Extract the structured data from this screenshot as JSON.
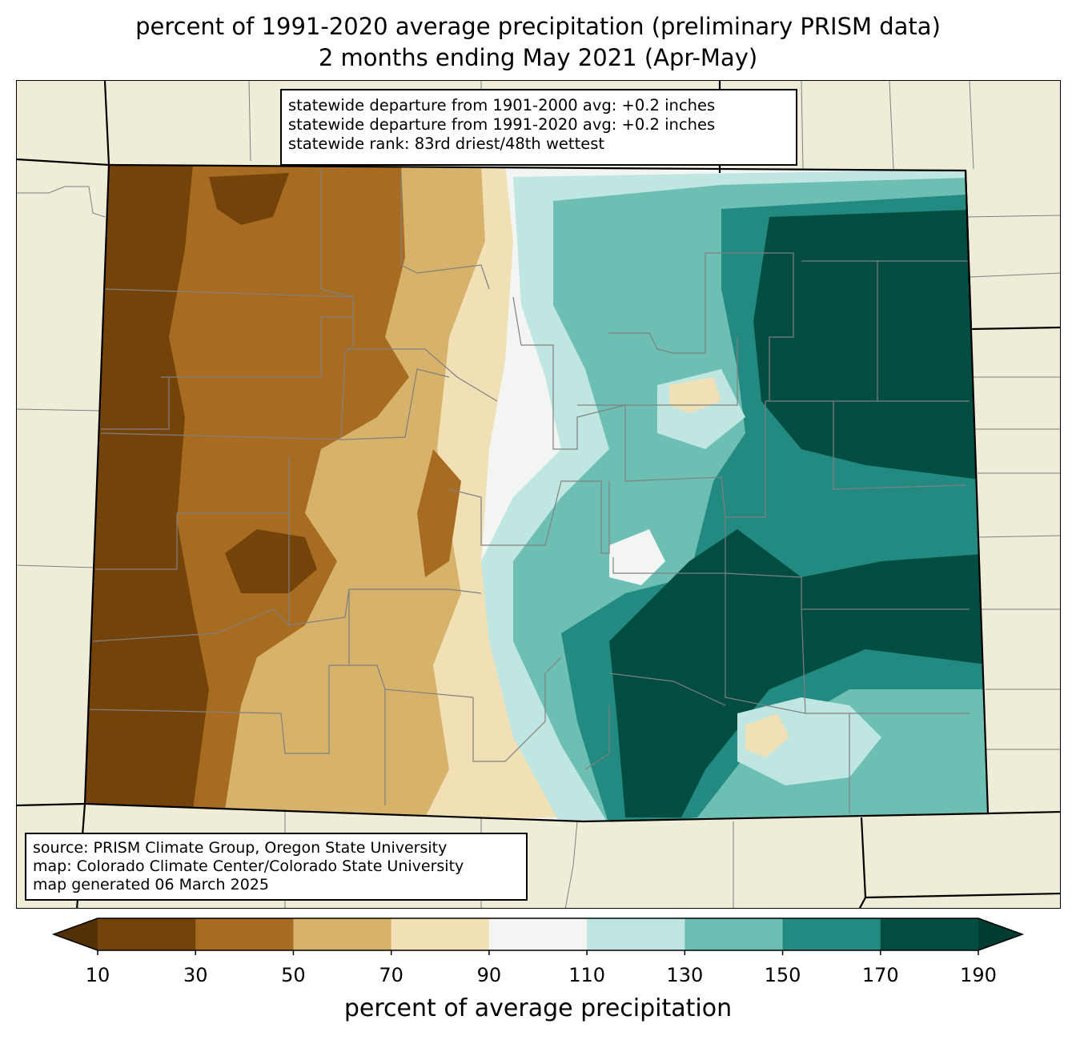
{
  "title": {
    "line1": "percent of 1991-2020 average precipitation (preliminary PRISM data)",
    "line2": "2 months ending May 2021 (Apr-May)"
  },
  "stats_box": {
    "line1": "statewide departure from 1901-2000 avg: +0.2 inches",
    "line2": "statewide departure from 1991-2020 avg: +0.2 inches",
    "line3": "statewide rank: 83rd driest/48th wettest"
  },
  "source_box": {
    "line1": "source: PRISM Climate Group, Oregon State University",
    "line2": "map: Colorado Climate Center/Colorado State University",
    "line3": "map generated 06 March 2025"
  },
  "colorbar": {
    "label": "percent of average precipitation",
    "ticks": [
      "10",
      "30",
      "50",
      "70",
      "90",
      "110",
      "130",
      "150",
      "170",
      "190"
    ],
    "colors": {
      "under": "#543005",
      "c10_30": "#744309",
      "c30_50": "#a86b22",
      "c50_70": "#d7b26a",
      "c70_90": "#f1e0b6",
      "c90_110": "#f3f5f3",
      "c110_130": "#bfe6e0",
      "c130_150": "#6dbfb3",
      "c150_170": "#228a80",
      "c170_190": "#024d41",
      "over": "#003c30"
    }
  },
  "map_colors": {
    "land": "#efedd8",
    "state_border": "#000000",
    "county_border": "#808080"
  }
}
